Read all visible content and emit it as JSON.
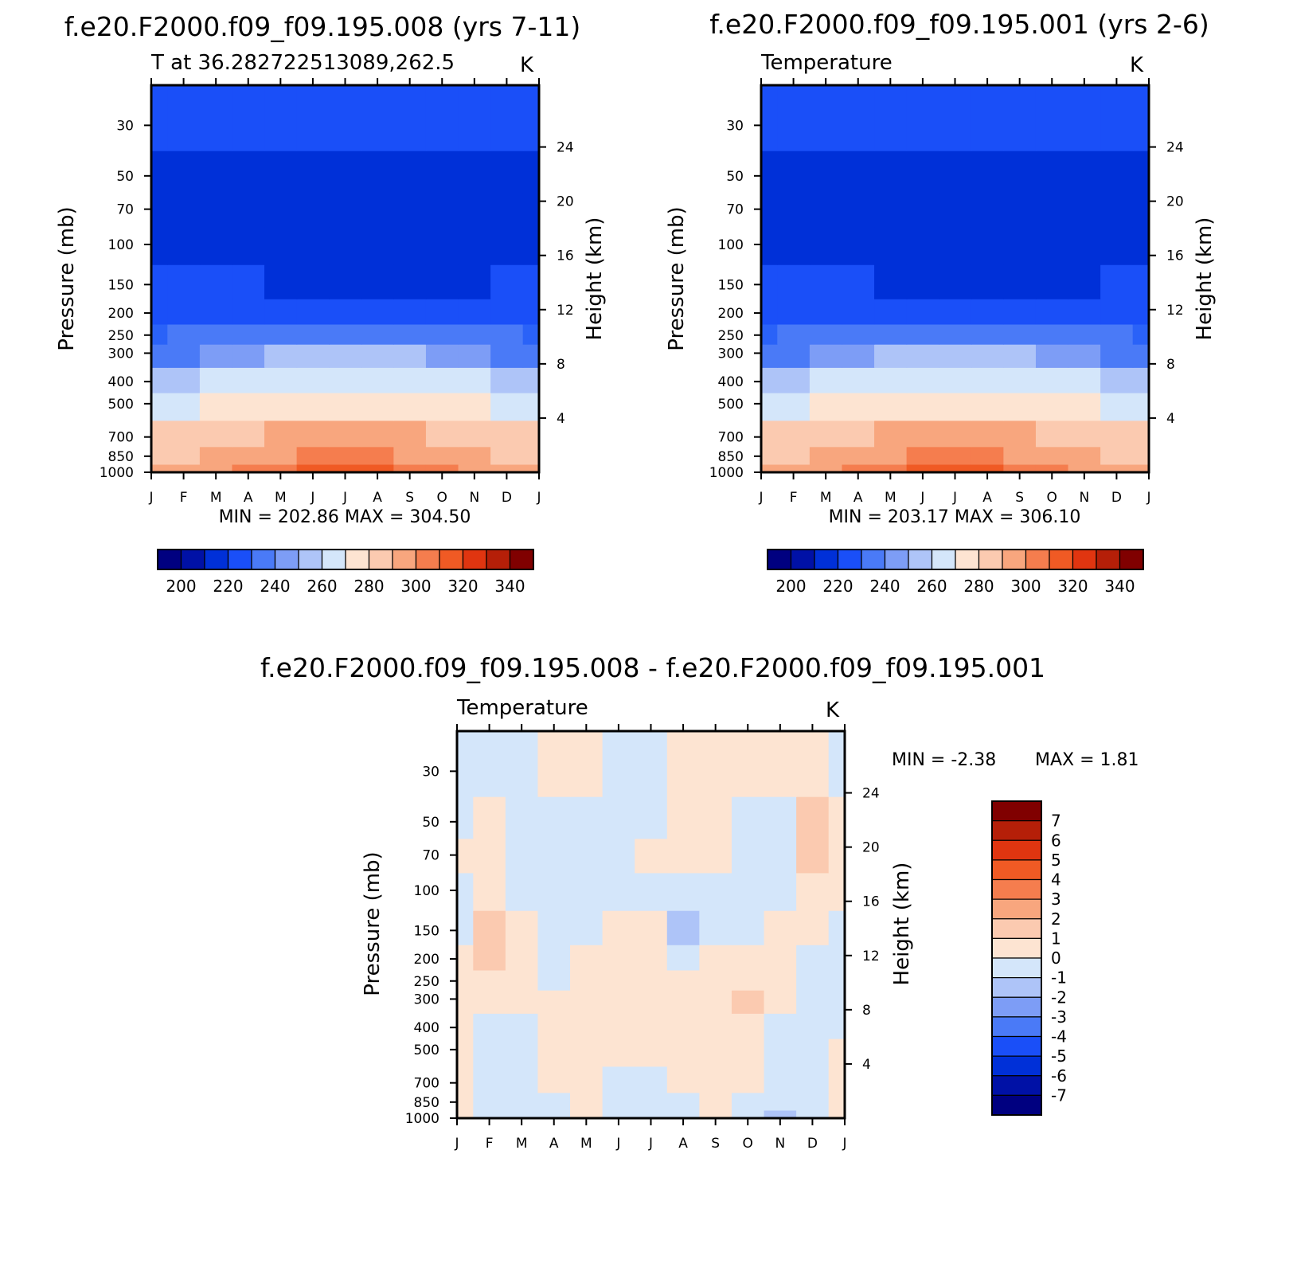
{
  "panels": [
    {
      "id": "run008",
      "title": "f.e20.F2000.f09_f09.195.008 (yrs 7-11)",
      "left_label": "T at 36.282722513089,262.5",
      "units": "K",
      "ylabel": "Pressure (mb)",
      "ylabel_right": "Height (km)",
      "minmax": "MIN = 202.86 MAX = 304.50"
    },
    {
      "id": "run001",
      "title": "f.e20.F2000.f09_f09.195.001 (yrs 2-6)",
      "left_label": "Temperature",
      "units": "K",
      "ylabel": "Pressure (mb)",
      "ylabel_right": "Height (km)",
      "minmax": "MIN = 203.17 MAX = 306.10"
    },
    {
      "id": "diff",
      "title": "f.e20.F2000.f09_f09.195.008 - f.e20.F2000.f09_f09.195.001",
      "left_label": "Temperature",
      "units": "K",
      "ylabel": "Pressure (mb)",
      "ylabel_right": "Height (km)",
      "minmax_min": "MIN = -2.38",
      "minmax_max": "MAX = 1.81"
    }
  ],
  "axes": {
    "months": [
      "J",
      "F",
      "M",
      "A",
      "M",
      "J",
      "J",
      "A",
      "S",
      "O",
      "N",
      "D",
      "J"
    ],
    "pressure_ticks": [
      30,
      50,
      70,
      100,
      150,
      200,
      250,
      300,
      400,
      500,
      700,
      850,
      1000
    ],
    "pressure_range": [
      20,
      1000
    ],
    "height_ticks": [
      4,
      8,
      12,
      16,
      20,
      24
    ]
  },
  "colorbar_temp": {
    "labels": [
      "200",
      "220",
      "240",
      "260",
      "280",
      "300",
      "320",
      "340"
    ],
    "colors": [
      "#000080",
      "#0011a6",
      "#0030d8",
      "#1a4ff8",
      "#4a7af7",
      "#7d9df6",
      "#aec4f8",
      "#d4e6fa",
      "#fde4d2",
      "#fbcab0",
      "#f8a67e",
      "#f57d4e",
      "#f05a24",
      "#e03510",
      "#b51f08",
      "#800000"
    ]
  },
  "colorbar_diff": {
    "labels": [
      "7",
      "6",
      "5",
      "4",
      "3",
      "2",
      "1",
      "0",
      "-1",
      "-2",
      "-3",
      "-4",
      "-5",
      "-6",
      "-7"
    ],
    "colors": [
      "#800000",
      "#b51f08",
      "#e03510",
      "#f05a24",
      "#f57d4e",
      "#f8a67e",
      "#fbcab0",
      "#fde4d2",
      "#d4e6fa",
      "#aec4f8",
      "#7d9df6",
      "#4a7af7",
      "#1a4ff8",
      "#0030d8",
      "#0011a6",
      "#000080"
    ]
  },
  "chart_data": [
    {
      "type": "heatmap",
      "title": "f.e20.F2000.f09_f09.195.008 (yrs 7-11)",
      "xlabel": "",
      "ylabel": "Pressure (mb)",
      "x": [
        "J",
        "F",
        "M",
        "A",
        "M",
        "J",
        "J",
        "A",
        "S",
        "O",
        "N",
        "D",
        "J"
      ],
      "y_levels": [
        1000,
        850,
        700,
        500,
        400,
        300,
        250,
        200,
        150,
        100,
        70,
        50,
        30
      ],
      "series": [
        {
          "name": "T (K)",
          "values": [
            [
              286,
              288,
              291,
              295,
              298,
              300,
              301,
              301,
              299,
              295,
              291,
              288,
              286
            ],
            [
              282,
              284,
              287,
              290,
              293,
              296,
              297,
              296,
              294,
              290,
              287,
              284,
              282
            ],
            [
              277,
              278,
              280,
              283,
              285,
              287,
              288,
              287,
              285,
              283,
              280,
              278,
              277
            ],
            [
              262,
              263,
              265,
              267,
              269,
              271,
              272,
              271,
              270,
              267,
              265,
              263,
              262
            ],
            [
              253,
              254,
              256,
              258,
              260,
              262,
              263,
              262,
              261,
              258,
              256,
              254,
              253
            ],
            [
              238,
              239,
              241,
              243,
              245,
              247,
              248,
              248,
              247,
              243,
              241,
              239,
              238
            ],
            [
              229,
              230,
              231,
              233,
              234,
              236,
              237,
              237,
              236,
              233,
              231,
              230,
              229
            ],
            [
              219,
              219,
              220,
              219,
              216,
              214,
              213,
              213,
              214,
              215,
              218,
              220,
              219
            ],
            [
              214,
              214,
              213,
              212,
              208,
              208,
              207,
              207,
              207,
              207,
              209,
              213,
              214
            ],
            [
              211,
              209,
              209,
              209,
              207,
              207,
              207,
              207,
              207,
              207,
              208,
              209,
              211
            ],
            [
              209,
              208,
              208,
              208,
              208,
              208,
              208,
              208,
              208,
              208,
              208,
              208,
              209
            ],
            [
              210,
              210,
              209,
              209,
              209,
              209,
              209,
              209,
              209,
              209,
              209,
              210,
              210
            ],
            [
              216,
              216,
              216,
              216,
              216,
              216,
              217,
              218,
              218,
              217,
              216,
              216,
              216
            ]
          ]
        }
      ],
      "contour_levels": [
        200,
        205,
        210,
        215,
        220,
        225,
        230,
        235,
        240,
        245,
        250,
        255,
        260,
        265,
        270,
        275,
        280,
        285,
        290,
        295,
        300
      ],
      "min": 202.86,
      "max": 304.5
    },
    {
      "type": "heatmap",
      "title": "f.e20.F2000.f09_f09.195.001 (yrs 2-6)",
      "xlabel": "",
      "ylabel": "Pressure (mb)",
      "x": [
        "J",
        "F",
        "M",
        "A",
        "M",
        "J",
        "J",
        "A",
        "S",
        "O",
        "N",
        "D",
        "J"
      ],
      "y_levels": [
        1000,
        850,
        700,
        500,
        400,
        300,
        250,
        200,
        150,
        100,
        70,
        50,
        30
      ],
      "series": [
        {
          "name": "T (K)",
          "values": [
            [
              286,
              288,
              291,
              295,
              299,
              301,
              302,
              301,
              299,
              295,
              291,
              288,
              286
            ],
            [
              282,
              284,
              287,
              290,
              293,
              296,
              297,
              296,
              294,
              290,
              287,
              284,
              282
            ],
            [
              277,
              278,
              280,
              283,
              285,
              287,
              288,
              287,
              285,
              283,
              280,
              278,
              277
            ],
            [
              262,
              263,
              265,
              267,
              269,
              271,
              272,
              271,
              270,
              267,
              265,
              263,
              262
            ],
            [
              253,
              254,
              256,
              258,
              260,
              262,
              263,
              262,
              261,
              258,
              256,
              254,
              253
            ],
            [
              238,
              239,
              241,
              243,
              245,
              247,
              248,
              248,
              247,
              243,
              241,
              239,
              238
            ],
            [
              229,
              230,
              231,
              233,
              234,
              236,
              237,
              237,
              236,
              233,
              231,
              230,
              229
            ],
            [
              219,
              219,
              220,
              219,
              216,
              214,
              213,
              213,
              214,
              215,
              218,
              220,
              219
            ],
            [
              214,
              214,
              213,
              212,
              208,
              208,
              207,
              207,
              207,
              207,
              209,
              213,
              214
            ],
            [
              211,
              209,
              209,
              209,
              207,
              207,
              207,
              207,
              207,
              207,
              208,
              209,
              211
            ],
            [
              209,
              208,
              208,
              208,
              208,
              208,
              208,
              208,
              208,
              208,
              208,
              208,
              209
            ],
            [
              210,
              210,
              209,
              209,
              209,
              209,
              209,
              209,
              209,
              209,
              210,
              210,
              210
            ],
            [
              216,
              216,
              216,
              216,
              216,
              216,
              217,
              218,
              218,
              217,
              216,
              216,
              216
            ]
          ]
        }
      ],
      "contour_levels": [
        200,
        205,
        210,
        215,
        220,
        225,
        230,
        235,
        240,
        245,
        250,
        255,
        260,
        265,
        270,
        275,
        280,
        285,
        290,
        295,
        300
      ],
      "min": 203.17,
      "max": 306.1
    },
    {
      "type": "heatmap",
      "title": "f.e20.F2000.f09_f09.195.008 - f.e20.F2000.f09_f09.195.001",
      "xlabel": "",
      "ylabel": "Pressure (mb)",
      "x": [
        "J",
        "F",
        "M",
        "A",
        "M",
        "J",
        "J",
        "A",
        "S",
        "O",
        "N",
        "D",
        "J"
      ],
      "y_levels": [
        1000,
        850,
        700,
        500,
        400,
        300,
        250,
        200,
        150,
        100,
        70,
        50,
        30
      ],
      "series": [
        {
          "name": "dT (K)",
          "values": [
            [
              0.5,
              -0.6,
              -0.3,
              -0.5,
              0.3,
              -0.7,
              -0.9,
              -0.3,
              0.2,
              -0.4,
              -1.1,
              -0.3,
              0.4
            ],
            [
              0.4,
              -0.3,
              -0.2,
              -0.3,
              0.2,
              -0.4,
              -0.5,
              -0.2,
              0.3,
              -0.2,
              -0.6,
              -0.2,
              0.3
            ],
            [
              0.3,
              -0.2,
              -0.2,
              0.2,
              0.3,
              -0.3,
              -0.3,
              0.2,
              0.3,
              0.2,
              -0.4,
              -0.3,
              0.2
            ],
            [
              0.3,
              -0.3,
              -0.3,
              0.3,
              0.3,
              0.3,
              0.2,
              0.3,
              0.3,
              0.3,
              -0.3,
              -0.3,
              0.3
            ],
            [
              0.2,
              -0.3,
              -0.3,
              0.3,
              0.4,
              0.3,
              0.3,
              0.3,
              0.3,
              0.3,
              -0.2,
              -0.4,
              -0.3
            ],
            [
              0.3,
              0.3,
              0.3,
              0.2,
              0.3,
              0.3,
              0.3,
              0.3,
              0.3,
              1.2,
              0.3,
              -0.3,
              -0.3
            ],
            [
              0.2,
              0.4,
              0.4,
              -0.3,
              0.2,
              0.3,
              0.3,
              0.3,
              0.3,
              0.4,
              0.3,
              -0.2,
              -0.3
            ],
            [
              0.2,
              1.1,
              0.5,
              -0.2,
              0.3,
              0.3,
              0.4,
              -0.4,
              0.3,
              0.3,
              0.3,
              -0.2,
              -0.3
            ],
            [
              -0.2,
              1.3,
              0.6,
              -0.5,
              -0.3,
              0.3,
              0.4,
              -1.3,
              -0.4,
              -0.3,
              0.3,
              0.2,
              -0.4
            ],
            [
              -0.3,
              0.4,
              -0.3,
              -0.3,
              -0.3,
              -0.3,
              -0.3,
              -0.5,
              -0.4,
              -0.6,
              -0.3,
              0.3,
              0.3
            ],
            [
              0.3,
              0.3,
              -0.3,
              -0.3,
              -0.3,
              -0.3,
              0.3,
              0.3,
              0.3,
              -1.0,
              -0.3,
              1.5,
              0.2
            ],
            [
              -0.2,
              0.4,
              -0.5,
              -0.3,
              -0.3,
              -0.3,
              -0.3,
              0.3,
              0.3,
              -0.4,
              -0.2,
              1.4,
              0.3
            ],
            [
              -0.3,
              -0.3,
              -0.8,
              0.3,
              0.4,
              -0.3,
              -0.3,
              0.3,
              0.3,
              0.3,
              0.3,
              0.5,
              -0.3
            ]
          ]
        }
      ],
      "contour_levels": [
        -7,
        -6,
        -5,
        -4,
        -3,
        -2,
        -1,
        0,
        1,
        2,
        3,
        4,
        5,
        6,
        7
      ],
      "min": -2.38,
      "max": 1.81
    }
  ]
}
